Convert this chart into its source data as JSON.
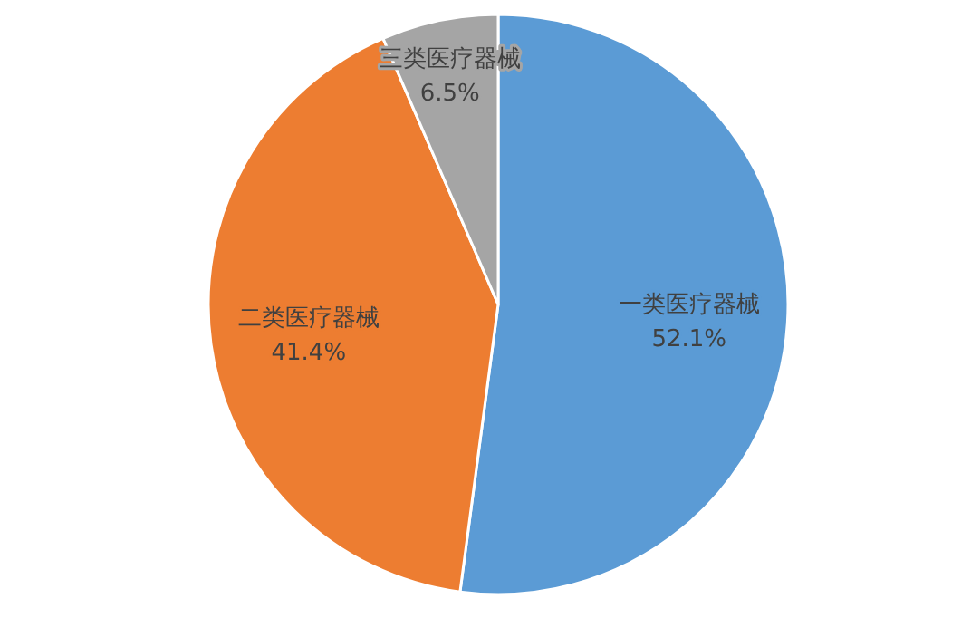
{
  "chart_data": {
    "type": "pie",
    "categories": [
      "一类医疗器械",
      "二类医疗器械",
      "三类医疗器械"
    ],
    "values": [
      52.1,
      41.4,
      6.5
    ],
    "colors": [
      "#5b9bd5",
      "#ed7d31",
      "#a5a5a5"
    ],
    "value_labels": [
      "52.1%",
      "41.4%",
      "6.5%"
    ],
    "legend": false
  }
}
